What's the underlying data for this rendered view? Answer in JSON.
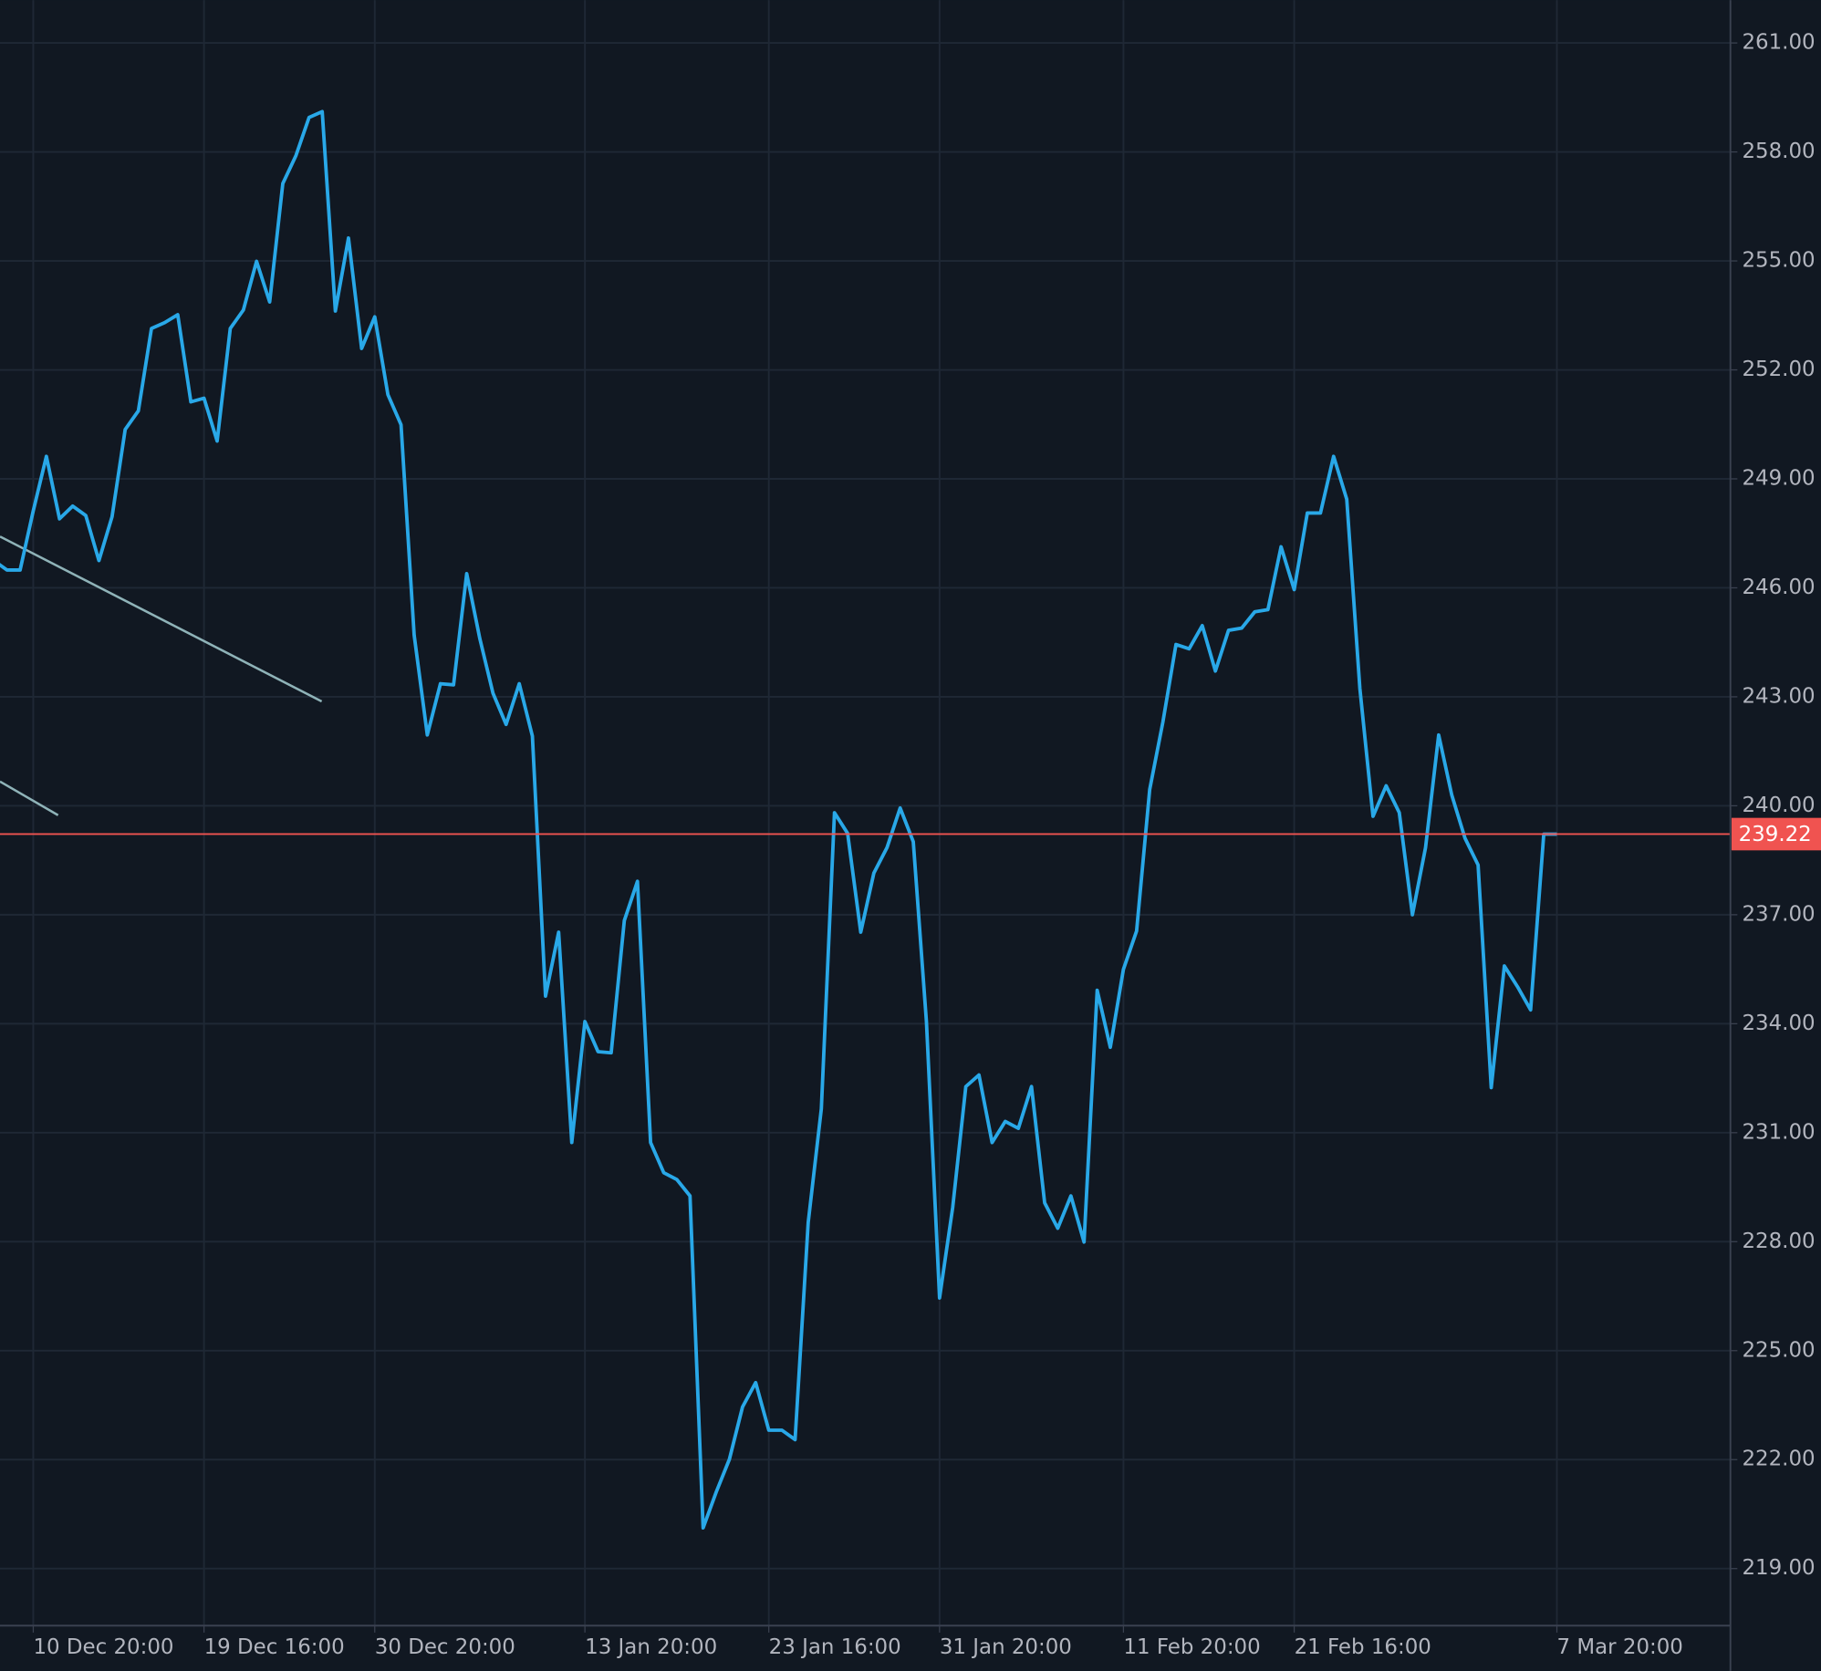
{
  "chart_data": {
    "type": "line",
    "categories": [
      null,
      null,
      null,
      "10 Dec 20:00",
      null,
      null,
      null,
      null,
      null,
      null,
      null,
      null,
      null,
      null,
      null,
      null,
      "19 Dec 16:00",
      null,
      null,
      null,
      null,
      null,
      null,
      null,
      null,
      null,
      null,
      null,
      null,
      "30 Dec 20:00",
      null,
      null,
      null,
      null,
      null,
      null,
      null,
      null,
      null,
      null,
      null,
      null,
      null,
      null,
      null,
      "13 Jan 20:00",
      null,
      null,
      null,
      null,
      null,
      null,
      null,
      null,
      null,
      null,
      null,
      null,
      null,
      "23 Jan 16:00",
      null,
      null,
      null,
      null,
      null,
      null,
      null,
      null,
      null,
      null,
      null,
      null,
      "31 Jan 20:00",
      null,
      null,
      null,
      null,
      null,
      null,
      null,
      null,
      null,
      null,
      null,
      null,
      null,
      "11 Feb 20:00",
      null,
      null,
      null,
      null,
      null,
      null,
      null,
      null,
      null,
      null,
      null,
      null,
      "21 Feb 16:00",
      null,
      null,
      null,
      null,
      null,
      null,
      null,
      null,
      null,
      null,
      null,
      null,
      null,
      null,
      null,
      null,
      null,
      null,
      null,
      "7 Mar 20:00"
    ],
    "series": [
      {
        "color": "#29a8e8",
        "values": [
          246.75,
          246.49,
          246.49,
          248.12,
          249.62,
          247.9,
          248.25,
          247.99,
          246.75,
          247.96,
          250.36,
          250.87,
          253.14,
          253.3,
          253.52,
          251.12,
          251.22,
          250.04,
          253.14,
          253.65,
          254.99,
          253.87,
          257.13,
          257.9,
          258.95,
          259.11,
          253.62,
          255.63,
          252.59,
          253.46,
          251.32,
          250.49,
          244.7,
          241.95,
          243.36,
          243.33,
          246.39,
          244.6,
          243.1,
          242.24,
          243.36,
          241.92,
          234.76,
          236.52,
          230.73,
          234.06,
          233.23,
          233.2,
          236.84,
          237.92,
          230.73,
          229.9,
          229.71,
          229.26,
          220.12,
          221.11,
          222.01,
          223.45,
          224.12,
          222.81,
          222.81,
          222.55,
          228.53,
          231.66,
          239.81,
          239.24,
          236.52,
          238.15,
          238.85,
          239.94,
          239.01,
          234.06,
          226.45,
          228.94,
          232.27,
          232.59,
          230.73,
          231.31,
          231.12,
          232.27,
          229.07,
          228.37,
          229.26,
          227.99,
          234.92,
          233.35,
          235.5,
          236.55,
          240.45,
          242.3,
          244.44,
          244.32,
          244.96,
          243.71,
          244.83,
          244.89,
          245.34,
          245.4,
          247.13,
          245.95,
          248.06,
          248.06,
          249.62,
          248.44,
          243.23,
          239.71,
          240.55,
          239.81,
          237.0,
          238.85,
          241.95,
          240.29,
          239.11,
          238.37,
          232.24,
          235.59,
          235.02,
          234.38,
          239.22,
          239.22
        ]
      }
    ],
    "ylim": [
      217.43,
      262.18
    ],
    "yticks": [
      {
        "value": 219,
        "label": "219.00"
      },
      {
        "value": 222,
        "label": "222.00"
      },
      {
        "value": 225,
        "label": "225.00"
      },
      {
        "value": 228,
        "label": "228.00"
      },
      {
        "value": 231,
        "label": "231.00"
      },
      {
        "value": 234,
        "label": "234.00"
      },
      {
        "value": 237,
        "label": "237.00"
      },
      {
        "value": 240,
        "label": "240.00"
      },
      {
        "value": 243,
        "label": "243.00"
      },
      {
        "value": 246,
        "label": "246.00"
      },
      {
        "value": 249,
        "label": "249.00"
      },
      {
        "value": 252,
        "label": "252.00"
      },
      {
        "value": 255,
        "label": "255.00"
      },
      {
        "value": 258,
        "label": "258.00"
      },
      {
        "value": 261,
        "label": "261.00"
      }
    ],
    "price_line": 239.22,
    "price_line_color": "#f05350",
    "grid": true
  }
}
